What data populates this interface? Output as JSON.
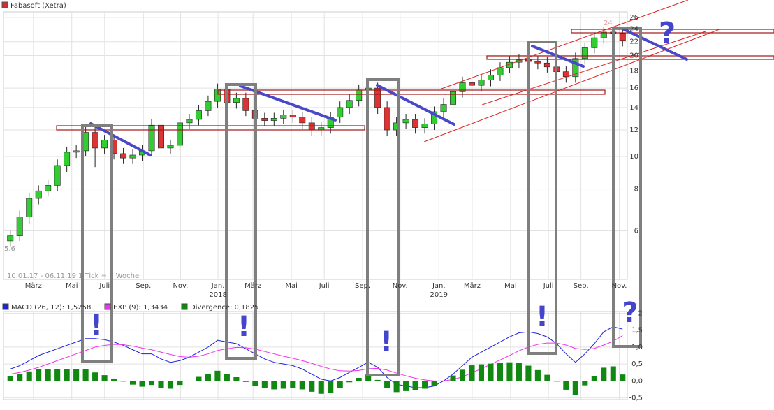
{
  "chart_data": [
    {
      "type": "candlestick",
      "title": "Fabasoft (Xetra)",
      "color": "#d03030",
      "up_color": "#33cc33",
      "down_color": "#dd3333",
      "open": [
        5.6,
        5.8,
        6.6,
        7.5,
        7.9,
        8.2,
        9.4,
        10.3,
        10.4,
        11.8,
        10.6,
        11.2,
        10.2,
        9.9,
        10.1,
        10.4,
        12.4,
        10.6,
        10.8,
        12.6,
        12.9,
        13.7,
        14.6,
        15.9,
        14.5,
        14.9,
        13.7,
        13.0,
        12.8,
        13.0,
        13.3,
        13.1,
        12.6,
        12.0,
        12.2,
        13.1,
        14.0,
        14.7,
        15.8,
        16.0,
        14.0,
        12.0,
        12.6,
        12.9,
        12.2,
        12.5,
        13.6,
        14.3,
        15.6,
        16.6,
        16.3,
        16.9,
        17.5,
        18.4,
        19.1,
        19.4,
        19.2,
        19.0,
        18.5,
        17.9,
        17.3,
        19.6,
        21.1,
        22.6,
        23.5,
        23.3
      ],
      "high": [
        6.0,
        6.9,
        7.8,
        8.2,
        8.5,
        9.8,
        10.7,
        10.8,
        12.3,
        12.3,
        11.6,
        11.6,
        10.6,
        10.5,
        10.8,
        12.9,
        12.9,
        11.2,
        13.1,
        13.4,
        14.2,
        15.2,
        16.5,
        16.5,
        15.5,
        15.5,
        14.2,
        13.5,
        13.5,
        13.8,
        13.8,
        13.6,
        13.1,
        12.7,
        13.6,
        14.6,
        15.3,
        16.4,
        16.6,
        16.6,
        14.6,
        13.1,
        13.4,
        13.4,
        13.0,
        14.1,
        14.9,
        16.2,
        17.3,
        17.3,
        17.6,
        18.2,
        19.1,
        19.9,
        20.2,
        20.2,
        20.0,
        19.8,
        19.2,
        18.6,
        20.4,
        21.9,
        23.5,
        24.4,
        24.4,
        24.2
      ],
      "low": [
        5.4,
        5.6,
        6.3,
        7.2,
        7.6,
        7.9,
        9.0,
        9.9,
        10.0,
        9.3,
        10.2,
        9.8,
        9.5,
        9.5,
        9.7,
        10.0,
        9.6,
        10.2,
        10.4,
        12.1,
        12.4,
        13.2,
        14.0,
        13.9,
        13.9,
        13.2,
        12.5,
        12.3,
        12.3,
        12.5,
        12.6,
        12.1,
        11.5,
        11.5,
        11.7,
        12.6,
        13.4,
        14.1,
        15.2,
        13.4,
        11.5,
        11.5,
        12.1,
        11.7,
        11.7,
        12.0,
        13.1,
        13.7,
        15.0,
        15.6,
        15.6,
        16.2,
        16.8,
        17.7,
        18.3,
        18.4,
        18.2,
        17.8,
        17.2,
        16.6,
        16.6,
        18.8,
        20.3,
        21.7,
        22.4,
        21.3
      ],
      "close": [
        5.8,
        6.6,
        7.5,
        7.9,
        8.2,
        9.4,
        10.3,
        10.4,
        11.8,
        10.6,
        11.2,
        10.2,
        9.9,
        10.1,
        10.4,
        12.4,
        10.6,
        10.8,
        12.6,
        12.9,
        13.7,
        14.6,
        15.9,
        14.5,
        14.9,
        13.7,
        13.0,
        12.8,
        13.0,
        13.3,
        13.1,
        12.6,
        12.0,
        12.2,
        13.1,
        14.0,
        14.7,
        15.8,
        16.0,
        14.0,
        12.0,
        12.6,
        12.9,
        12.2,
        12.5,
        13.6,
        14.3,
        15.6,
        16.6,
        16.3,
        16.9,
        17.5,
        18.4,
        19.1,
        19.4,
        19.2,
        19.0,
        18.5,
        17.9,
        17.3,
        19.6,
        21.1,
        22.6,
        23.5,
        23.3,
        22.2
      ],
      "log_scale": true,
      "grid": true,
      "ylim": [
        4.3,
        27
      ],
      "yticks": [
        6,
        8,
        10,
        12,
        14,
        16,
        18,
        20,
        22,
        24,
        26
      ],
      "xlim": [
        0,
        147.5
      ],
      "xticks": [
        {
          "value": 6.6,
          "label": "März"
        },
        {
          "value": 15.7,
          "label": "Mai"
        },
        {
          "value": 23.5,
          "label": "Juli"
        },
        {
          "value": 32.7,
          "label": "Sep."
        },
        {
          "value": 41.5,
          "label": "Nov."
        },
        {
          "value": 50.4,
          "label": "Jan."
        },
        {
          "value": 58.7,
          "label": "März"
        },
        {
          "value": 67.8,
          "label": "Mai"
        },
        {
          "value": 75.6,
          "label": "Juli"
        },
        {
          "value": 84.7,
          "label": "Sep."
        },
        {
          "value": 93.6,
          "label": "Nov."
        },
        {
          "value": 102.8,
          "label": "Jan."
        },
        {
          "value": 110.7,
          "label": "März"
        },
        {
          "value": 119.8,
          "label": "Mai"
        },
        {
          "value": 128.8,
          "label": "Juli"
        },
        {
          "value": 136.5,
          "label": "Sep."
        },
        {
          "value": 145.6,
          "label": "Nov."
        }
      ],
      "x_year_labels": [
        {
          "value": 50.4,
          "label": "2018"
        },
        {
          "value": 102.8,
          "label": "2019"
        }
      ],
      "period": "10.01.17 - 06.11.19",
      "tick_note": "1 Tick = 1 Woche",
      "low_label": "5,6",
      "high_label": "24",
      "annotations": [
        {
          "text": "!"
        },
        {
          "text": "!"
        },
        {
          "text": "!"
        },
        {
          "text": "!"
        },
        {
          "text": "?"
        },
        {
          "text": "?"
        }
      ]
    },
    {
      "type": "macd",
      "ylim": [
        -0.55,
        2.05
      ],
      "yticks": [
        {
          "value": -0.5,
          "label": "-0,5"
        },
        {
          "value": 0,
          "label": "0,0"
        },
        {
          "value": 0.5,
          "label": "0,5"
        },
        {
          "value": 1,
          "label": "1,0"
        },
        {
          "value": 1.5,
          "label": "1,5"
        },
        2
      ],
      "series": [
        {
          "name": "MACD (26, 12): 1,5258",
          "color": "#2020dd",
          "style": "line",
          "values": [
            0.35,
            0.45,
            0.6,
            0.75,
            0.85,
            0.95,
            1.05,
            1.15,
            1.25,
            1.25,
            1.22,
            1.15,
            1.05,
            0.92,
            0.8,
            0.8,
            0.65,
            0.55,
            0.6,
            0.7,
            0.85,
            1.0,
            1.2,
            1.15,
            1.1,
            0.95,
            0.8,
            0.65,
            0.55,
            0.5,
            0.45,
            0.35,
            0.2,
            0.05,
            0.0,
            0.1,
            0.25,
            0.4,
            0.55,
            0.4,
            0.1,
            -0.1,
            -0.15,
            -0.2,
            -0.2,
            -0.15,
            0.0,
            0.2,
            0.45,
            0.7,
            0.85,
            1.0,
            1.15,
            1.3,
            1.42,
            1.45,
            1.4,
            1.3,
            1.1,
            0.8,
            0.55,
            0.8,
            1.1,
            1.45,
            1.6,
            1.53
          ]
        },
        {
          "name": "EXP (9): 1,3434",
          "color": "#ee33ee",
          "style": "line",
          "values": [
            0.2,
            0.25,
            0.32,
            0.4,
            0.5,
            0.6,
            0.7,
            0.8,
            0.9,
            1.0,
            1.05,
            1.08,
            1.07,
            1.03,
            0.97,
            0.92,
            0.85,
            0.78,
            0.72,
            0.7,
            0.73,
            0.8,
            0.9,
            0.95,
            0.99,
            0.98,
            0.94,
            0.87,
            0.8,
            0.73,
            0.67,
            0.6,
            0.52,
            0.43,
            0.35,
            0.3,
            0.29,
            0.31,
            0.36,
            0.37,
            0.32,
            0.23,
            0.15,
            0.08,
            0.03,
            0.0,
            0.0,
            0.04,
            0.12,
            0.24,
            0.36,
            0.49,
            0.62,
            0.75,
            0.89,
            1.0,
            1.08,
            1.12,
            1.12,
            1.06,
            0.96,
            0.93,
            0.96,
            1.06,
            1.17,
            1.34
          ]
        },
        {
          "name": "Divergence: 0,1825",
          "color": "#118811",
          "style": "bar",
          "values": [
            0.15,
            0.2,
            0.28,
            0.35,
            0.35,
            0.35,
            0.35,
            0.35,
            0.35,
            0.25,
            0.17,
            0.07,
            -0.02,
            -0.11,
            -0.17,
            -0.12,
            -0.2,
            -0.23,
            -0.12,
            0.0,
            0.12,
            0.2,
            0.3,
            0.2,
            0.11,
            -0.03,
            -0.14,
            -0.22,
            -0.25,
            -0.23,
            -0.22,
            -0.25,
            -0.32,
            -0.38,
            -0.35,
            -0.2,
            -0.04,
            0.09,
            0.19,
            0.03,
            -0.22,
            -0.33,
            -0.3,
            -0.28,
            -0.23,
            -0.15,
            0.0,
            0.16,
            0.33,
            0.46,
            0.49,
            0.51,
            0.53,
            0.55,
            0.53,
            0.45,
            0.32,
            0.18,
            -0.02,
            -0.26,
            -0.41,
            -0.13,
            0.14,
            0.39,
            0.43,
            0.19
          ]
        }
      ]
    }
  ]
}
